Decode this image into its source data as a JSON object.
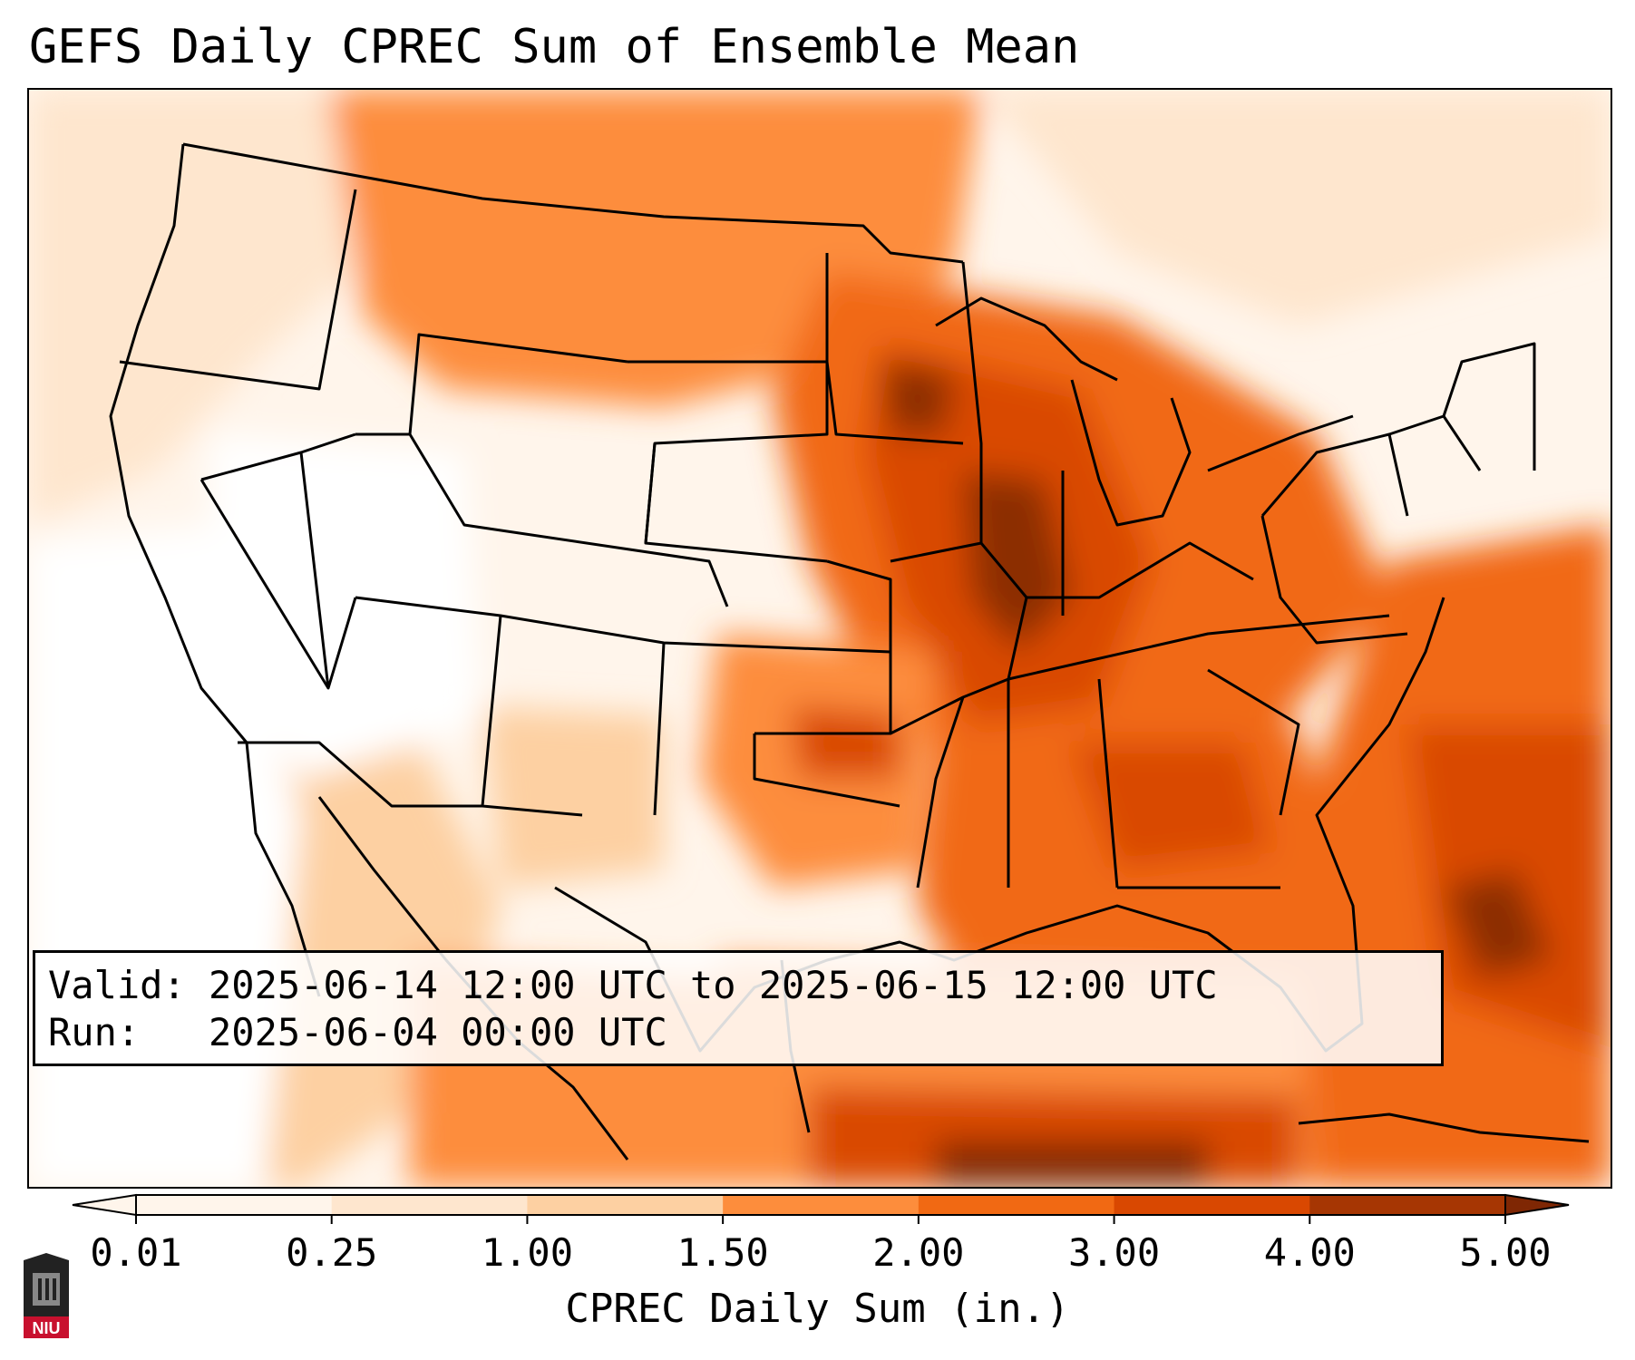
{
  "title": "GEFS Daily CPREC Sum of Ensemble Mean",
  "info": {
    "valid_label": "Valid:",
    "valid_value": "2025-06-14 12:00 UTC to 2025-06-15 12:00 UTC",
    "run_label": "Run:",
    "run_value": "2025-06-04 00:00 UTC"
  },
  "colorbar": {
    "label": "CPREC Daily Sum (in.)",
    "ticks": [
      "0.01",
      "0.25",
      "1.00",
      "1.50",
      "2.00",
      "3.00",
      "4.00",
      "5.00"
    ],
    "colors": [
      "#fff5eb",
      "#fee6ce",
      "#fdd0a2",
      "#fd8d3c",
      "#f16913",
      "#d94801",
      "#a63603",
      "#7f2704"
    ],
    "extend_low_color": "#fff5eb",
    "extend_high_color": "#7f2704"
  },
  "logo": {
    "text": "NIU",
    "color": "#c8102e"
  }
}
